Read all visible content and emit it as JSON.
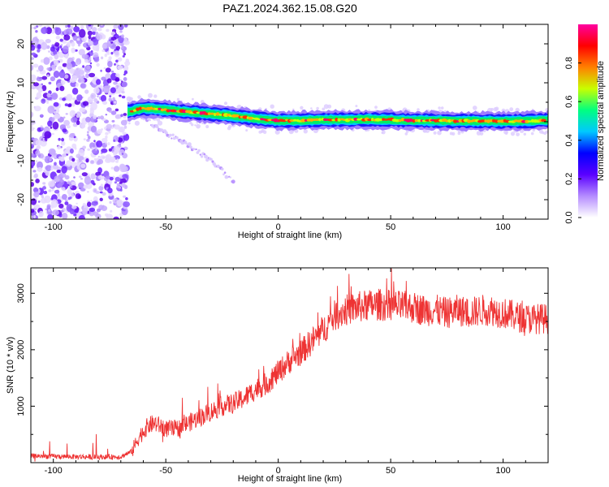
{
  "title": "PAZ1.2024.362.15.08.G20",
  "chart_data": [
    {
      "type": "heatmap",
      "xlabel": "Height of straight line (km)",
      "ylabel": "Frequency (Hz)",
      "xlim": [
        -110,
        120
      ],
      "ylim": [
        -25,
        25
      ],
      "xticks": [
        -100,
        -50,
        0,
        50,
        100
      ],
      "yticks": [
        -20,
        -10,
        0,
        10,
        20
      ],
      "colorbar": {
        "label": "Normalized spectral amplitude",
        "range": [
          0.0,
          1.0
        ],
        "ticks": [
          0.0,
          0.2,
          0.4,
          0.6,
          0.8
        ],
        "colors": [
          "#ffffff",
          "#b58cff",
          "#5a00ff",
          "#0000ff",
          "#00c8ff",
          "#00ff80",
          "#c8ff00",
          "#ff8000",
          "#ff0000",
          "#ff00a0"
        ]
      },
      "main_trace": {
        "x": [
          -67,
          -60,
          -50,
          -40,
          -30,
          -20,
          -10,
          0,
          10,
          20,
          30,
          40,
          50,
          60,
          70,
          80,
          90,
          100,
          110,
          120
        ],
        "frequency": [
          2.5,
          3.5,
          3.0,
          2.5,
          2.0,
          1.5,
          0.8,
          0.3,
          0.3,
          0.5,
          0.5,
          0.6,
          0.5,
          0.3,
          0.3,
          0.2,
          0.2,
          0.1,
          0.2,
          0.4
        ]
      },
      "secondary_trace": {
        "x": [
          -62,
          -50,
          -40,
          -30,
          -25,
          -20
        ],
        "frequency": [
          2.0,
          -3.0,
          -6.0,
          -10.0,
          -12.5,
          -15.5
        ]
      },
      "noise_region_x": [
        -110,
        -67
      ],
      "grid": false
    },
    {
      "type": "line",
      "xlabel": "Height of straight line (km)",
      "ylabel": "SNR (10 * v/v)",
      "xlim": [
        -110,
        120
      ],
      "ylim": [
        0,
        3450
      ],
      "xticks": [
        -100,
        -50,
        0,
        50,
        100
      ],
      "yticks": [
        1000,
        2000,
        3000
      ],
      "series": [
        {
          "color": "#ee3333",
          "x": [
            -110,
            -100,
            -90,
            -80,
            -70,
            -65,
            -62,
            -58,
            -55,
            -50,
            -45,
            -40,
            -35,
            -30,
            -25,
            -20,
            -15,
            -10,
            -5,
            0,
            5,
            10,
            15,
            20,
            25,
            30,
            35,
            40,
            45,
            50,
            55,
            60,
            65,
            70,
            75,
            80,
            85,
            90,
            95,
            100,
            105,
            110,
            115,
            120
          ],
          "values": [
            120,
            110,
            105,
            100,
            105,
            200,
            450,
            650,
            700,
            600,
            600,
            700,
            800,
            900,
            1000,
            1050,
            1150,
            1300,
            1400,
            1600,
            1800,
            1950,
            2150,
            2350,
            2600,
            2700,
            2750,
            2780,
            2800,
            2780,
            2760,
            2750,
            2700,
            2700,
            2650,
            2700,
            2650,
            2700,
            2700,
            2650,
            2600,
            2550,
            2550,
            2550
          ]
        }
      ],
      "grid": false
    }
  ]
}
